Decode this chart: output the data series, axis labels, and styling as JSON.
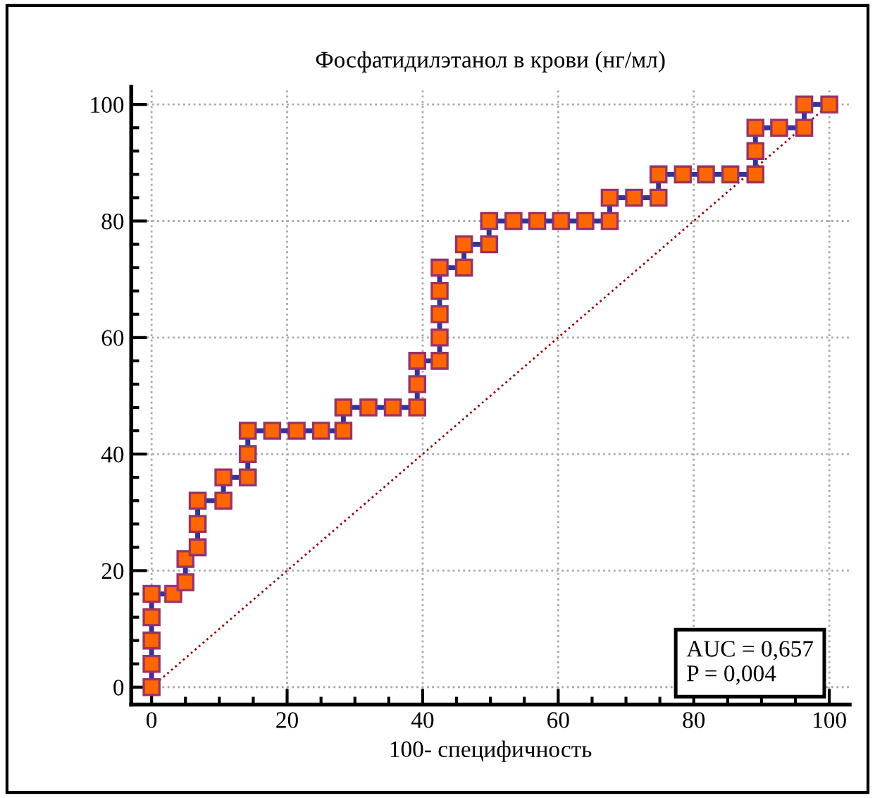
{
  "chart_data": {
    "type": "line",
    "title": "Фосфатидилэтанол в крови (нг/мл)",
    "xlabel": "100- специфичность",
    "xlim": [
      -3,
      103
    ],
    "ylim": [
      -3,
      103
    ],
    "xticks": [
      0,
      {
        "value": 5,
        "label": null
      },
      {
        "value": 10,
        "label": null
      },
      {
        "value": 15,
        "label": null
      },
      20,
      {
        "value": 25,
        "label": null
      },
      {
        "value": 30,
        "label": null
      },
      {
        "value": 35,
        "label": null
      },
      40,
      {
        "value": 45,
        "label": null
      },
      {
        "value": 50,
        "label": null
      },
      {
        "value": 55,
        "label": null
      },
      60,
      {
        "value": 65,
        "label": null
      },
      {
        "value": 70,
        "label": null
      },
      {
        "value": 75,
        "label": null
      },
      80,
      {
        "value": 85,
        "label": null
      },
      {
        "value": 90,
        "label": null
      },
      {
        "value": 95,
        "label": null
      },
      100
    ],
    "yticks": [
      0,
      {
        "value": 4,
        "label": null
      },
      {
        "value": 8,
        "label": null
      },
      {
        "value": 12,
        "label": null
      },
      {
        "value": 16,
        "label": null
      },
      20,
      {
        "value": 24,
        "label": null
      },
      {
        "value": 28,
        "label": null
      },
      {
        "value": 32,
        "label": null
      },
      {
        "value": 36,
        "label": null
      },
      40,
      {
        "value": 44,
        "label": null
      },
      {
        "value": 48,
        "label": null
      },
      {
        "value": 52,
        "label": null
      },
      {
        "value": 56,
        "label": null
      },
      60,
      {
        "value": 64,
        "label": null
      },
      {
        "value": 68,
        "label": null
      },
      {
        "value": 72,
        "label": null
      },
      {
        "value": 76,
        "label": null
      },
      80,
      {
        "value": 84,
        "label": null
      },
      {
        "value": 88,
        "label": null
      },
      {
        "value": 92,
        "label": null
      },
      {
        "value": 96,
        "label": null
      },
      100
    ],
    "grid": true,
    "series": [
      {
        "color": "#ff6600",
        "marker": "square",
        "line_style": "solid",
        "x": [
          0,
          0,
          0,
          0,
          0,
          3.2,
          5.0,
          5.0,
          6.8,
          6.8,
          6.8,
          10.6,
          10.6,
          14.2,
          14.2,
          14.2,
          17.8,
          21.4,
          25.0,
          28.3,
          28.3,
          32.0,
          35.6,
          39.2,
          39.2,
          39.2,
          42.5,
          42.5,
          42.5,
          42.5,
          42.5,
          46.1,
          46.1,
          49.8,
          49.8,
          53.4,
          56.9,
          60.4,
          64.0,
          67.6,
          67.6,
          71.2,
          74.8,
          74.8,
          78.4,
          81.8,
          85.4,
          89.1,
          89.1,
          89.1,
          92.6,
          96.3,
          96.3,
          100
        ],
        "values": [
          0,
          4,
          8,
          12,
          16,
          16,
          18,
          22,
          24,
          28,
          32,
          32,
          36,
          36,
          40,
          44,
          44,
          44,
          44,
          44,
          48,
          48,
          48,
          48,
          52,
          56,
          56,
          60,
          64,
          68,
          72,
          72,
          76,
          76,
          80,
          80,
          80,
          80,
          80,
          80,
          84,
          84,
          84,
          88,
          88,
          88,
          88,
          88,
          92,
          96,
          96,
          96,
          100,
          100
        ]
      },
      {
        "color": "#990000",
        "marker": "none",
        "line_style": "dotted",
        "x": [
          0,
          100
        ],
        "values": [
          0,
          100
        ]
      }
    ],
    "annotations": [
      "AUC = 0,657\nP = 0,004"
    ]
  }
}
